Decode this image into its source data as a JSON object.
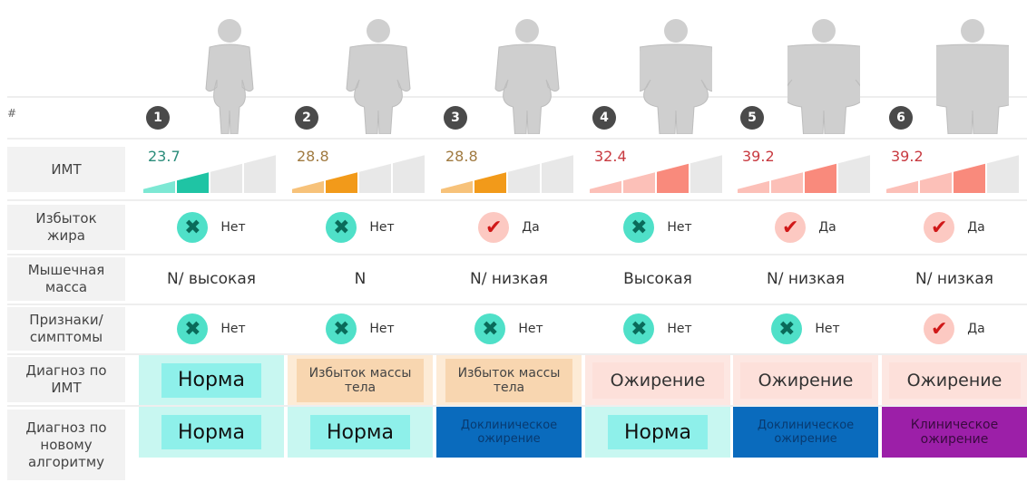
{
  "labels": {
    "hash": "#",
    "bmi": "ИМТ",
    "fat": "Избыток жира",
    "muscle": "Мышечная масса",
    "symptoms": "Признаки/ симптомы",
    "diag_bmi": "Диагноз по ИМТ",
    "diag_new": "Диагноз по новому алгоритму"
  },
  "colors": {
    "teal": "#1fc4a4",
    "orange": "#f29a1a",
    "salmon": "#f98a7c",
    "norm_bg": "#8ef0ea",
    "overweight_bg": "#f8d6b0",
    "obesity_bg": "#fde0da",
    "preclinical_bg": "#0a6bbd",
    "clinical_bg": "#9c1fa8"
  },
  "columns": [
    {
      "num": "1",
      "bmi": "23.7",
      "bmi_level": 2,
      "bmi_color": "teal",
      "fat": "Нет",
      "fat_yes": false,
      "muscle": "N/ высокая",
      "symptoms": "Нет",
      "symptoms_yes": false,
      "diag_bmi": "Норма",
      "diag_bmi_type": "norm",
      "diag_new": "Норма",
      "diag_new_type": "norm",
      "body": 0
    },
    {
      "num": "2",
      "bmi": "28.8",
      "bmi_level": 2,
      "bmi_color": "orange",
      "fat": "Нет",
      "fat_yes": false,
      "muscle": "N",
      "symptoms": "Нет",
      "symptoms_yes": false,
      "diag_bmi": "Избыток массы тела",
      "diag_bmi_type": "overweight",
      "diag_new": "Норма",
      "diag_new_type": "norm",
      "body": 1
    },
    {
      "num": "3",
      "bmi": "28.8",
      "bmi_level": 2,
      "bmi_color": "orange",
      "fat": "Да",
      "fat_yes": true,
      "muscle": "N/ низкая",
      "symptoms": "Нет",
      "symptoms_yes": false,
      "diag_bmi": "Избыток массы тела",
      "diag_bmi_type": "overweight",
      "diag_new": "Доклиническое ожирение",
      "diag_new_type": "preclinical",
      "body": 1
    },
    {
      "num": "4",
      "bmi": "32.4",
      "bmi_level": 3,
      "bmi_color": "salmon",
      "fat": "Нет",
      "fat_yes": false,
      "muscle": "Высокая",
      "symptoms": "Нет",
      "symptoms_yes": false,
      "diag_bmi": "Ожирение",
      "diag_bmi_type": "obesity",
      "diag_new": "Норма",
      "diag_new_type": "norm",
      "body": 2
    },
    {
      "num": "5",
      "bmi": "39.2",
      "bmi_level": 3,
      "bmi_color": "salmon",
      "fat": "Да",
      "fat_yes": true,
      "muscle": "N/ низкая",
      "symptoms": "Нет",
      "symptoms_yes": false,
      "diag_bmi": "Ожирение",
      "diag_bmi_type": "obesity",
      "diag_new": "Доклиническое ожирение",
      "diag_new_type": "preclinical",
      "body": 3
    },
    {
      "num": "6",
      "bmi": "39.2",
      "bmi_level": 3,
      "bmi_color": "salmon",
      "fat": "Да",
      "fat_yes": true,
      "muscle": "N/ низкая",
      "symptoms": "Да",
      "symptoms_yes": true,
      "diag_bmi": "Ожирение",
      "diag_bmi_type": "obesity",
      "diag_new": "Клиническое ожирение",
      "diag_new_type": "clinical",
      "body": 4
    }
  ]
}
